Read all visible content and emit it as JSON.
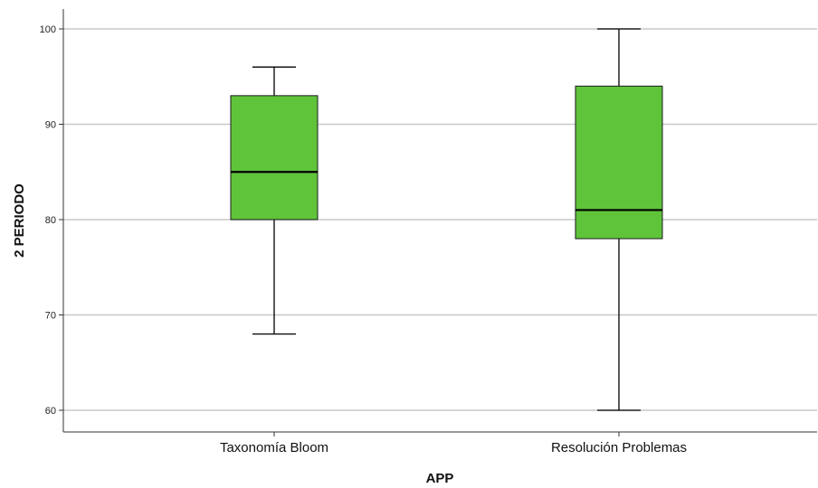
{
  "chart_data": {
    "type": "box",
    "xlabel": "APP",
    "ylabel": "2 PERIODO",
    "ylim": [
      58,
      102
    ],
    "yticks": [
      60,
      70,
      80,
      90,
      100
    ],
    "grid": true,
    "box_color": "#5fc43a",
    "categories": [
      "Taxonomía Bloom",
      "Resolución Problemas"
    ],
    "boxes": [
      {
        "category": "Taxonomía Bloom",
        "min": 68,
        "q1": 80,
        "median": 85,
        "q3": 93,
        "max": 96
      },
      {
        "category": "Resolución Problemas",
        "min": 60,
        "q1": 78,
        "median": 81,
        "q3": 94,
        "max": 100
      }
    ]
  }
}
